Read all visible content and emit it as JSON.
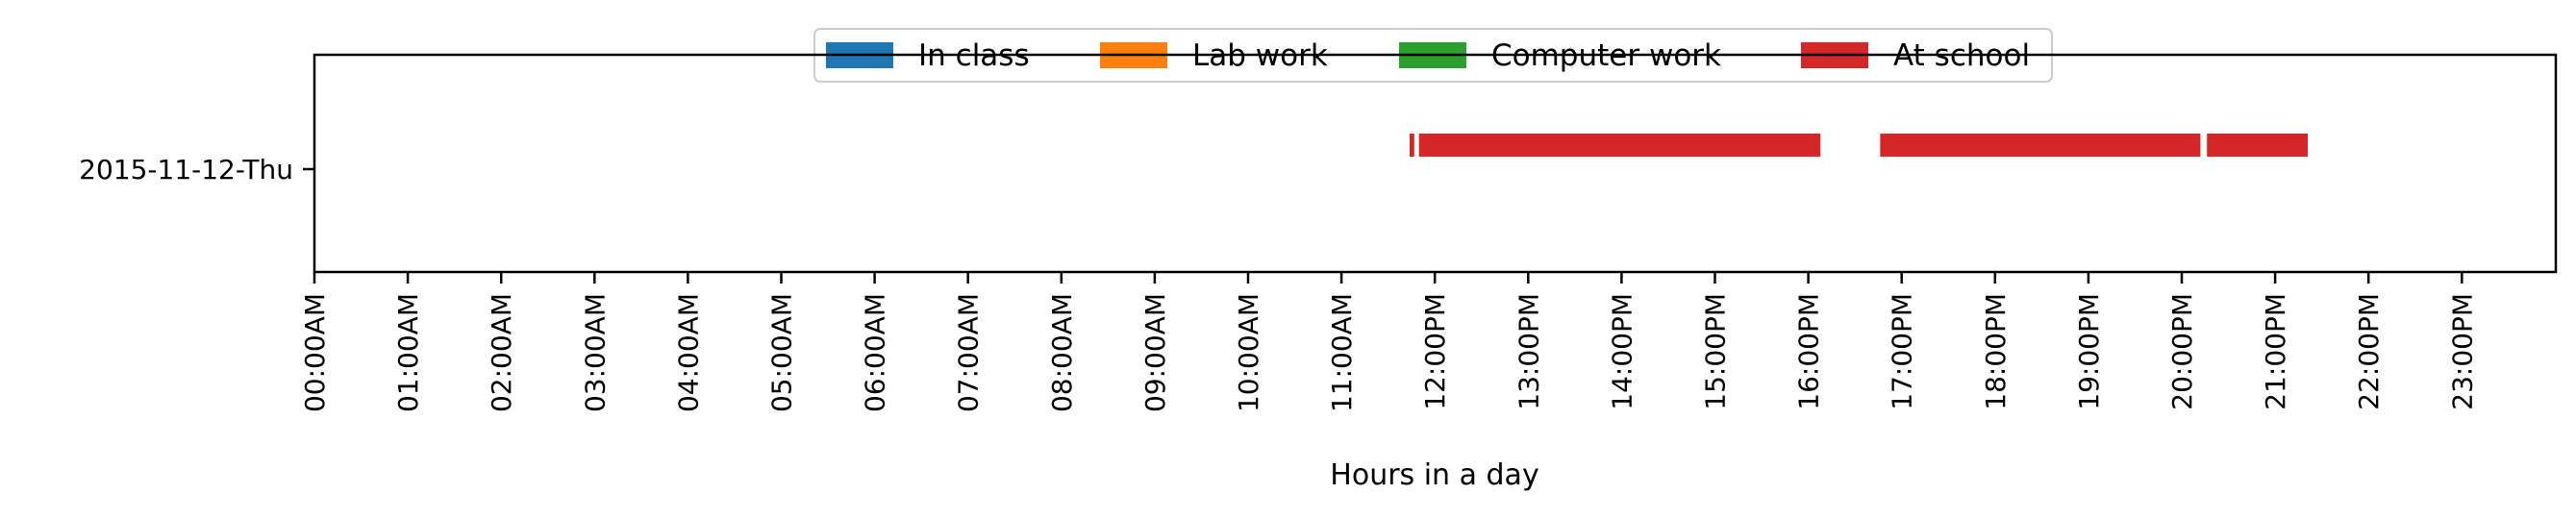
{
  "chart_data": {
    "type": "timeline",
    "xlabel": "Hours in a day",
    "ylabel": "",
    "xlim": [
      0,
      24
    ],
    "x_ticks": [
      "00:00AM",
      "01:00AM",
      "02:00AM",
      "03:00AM",
      "04:00AM",
      "05:00AM",
      "06:00AM",
      "07:00AM",
      "08:00AM",
      "09:00AM",
      "10:00AM",
      "11:00AM",
      "12:00PM",
      "13:00PM",
      "14:00PM",
      "15:00PM",
      "16:00PM",
      "17:00PM",
      "18:00PM",
      "19:00PM",
      "20:00PM",
      "21:00PM",
      "22:00PM",
      "23:00PM"
    ],
    "categories": [
      "2015-11-12-Thu"
    ],
    "legend_position": "top-center",
    "grid": false,
    "series": [
      {
        "name": "In class",
        "color": "#1f77b4",
        "intervals": []
      },
      {
        "name": "Lab work",
        "color": "#ff7f0e",
        "intervals": []
      },
      {
        "name": "Computer work",
        "color": "#2ca02c",
        "intervals": []
      },
      {
        "name": "At school",
        "color": "#d62728",
        "intervals": [
          {
            "category": "2015-11-12-Thu",
            "start": 11.73,
            "end": 11.78
          },
          {
            "category": "2015-11-12-Thu",
            "start": 11.83,
            "end": 16.13
          },
          {
            "category": "2015-11-12-Thu",
            "start": 16.77,
            "end": 20.2
          },
          {
            "category": "2015-11-12-Thu",
            "start": 20.27,
            "end": 21.35
          }
        ]
      }
    ]
  }
}
